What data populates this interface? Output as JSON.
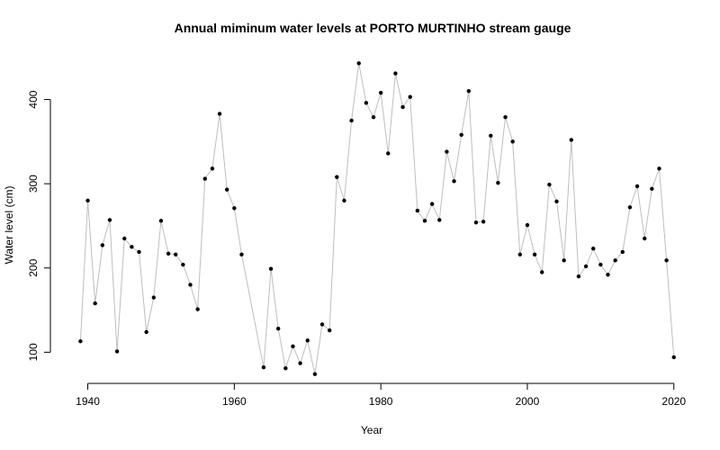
{
  "chart_data": {
    "type": "line",
    "title": "Annual miminum water levels at PORTO MURTINHO stream gauge",
    "xlabel": "Year",
    "ylabel": "Water level (cm)",
    "xlim": [
      1937.6,
      2020.4
    ],
    "ylim": [
      63,
      454
    ],
    "xticks": [
      1940,
      1960,
      1980,
      2000,
      2020
    ],
    "yticks": [
      100,
      200,
      300,
      400
    ],
    "grid": false,
    "markers": true,
    "line_color": "#bebebe",
    "marker_color": "#000000",
    "series": [
      {
        "x": [
          1939,
          1940,
          1941,
          1942,
          1943,
          1944,
          1945,
          1946,
          1947,
          1948,
          1949,
          1950,
          1951,
          1952,
          1953,
          1954,
          1955,
          1956,
          1957,
          1958,
          1959,
          1960,
          1961,
          1964,
          1965,
          1966,
          1967,
          1968,
          1969,
          1970,
          1971,
          1972,
          1973,
          1974,
          1975,
          1976,
          1977,
          1978,
          1979,
          1980,
          1981,
          1982,
          1983,
          1984,
          1985,
          1986,
          1987,
          1988,
          1989,
          1990,
          1991,
          1992,
          1993,
          1994,
          1995,
          1996,
          1997,
          1998,
          1999,
          2000,
          2001,
          2002,
          2003,
          2004,
          2005,
          2006,
          2007,
          2008,
          2009,
          2010,
          2011,
          2012,
          2013,
          2014,
          2015,
          2016,
          2017,
          2018,
          2019,
          2020
        ],
        "values": [
          113,
          280,
          158,
          227,
          257,
          101,
          235,
          225,
          219,
          124,
          165,
          256,
          217,
          216,
          204,
          180,
          151,
          306,
          318,
          383,
          293,
          271,
          216,
          82,
          199,
          128,
          81,
          107,
          87,
          114,
          74,
          133,
          126,
          308,
          280,
          375,
          443,
          396,
          379,
          408,
          336,
          431,
          391,
          403,
          268,
          256,
          276,
          257,
          338,
          303,
          358,
          410,
          254,
          255,
          357,
          301,
          379,
          350,
          216,
          251,
          216,
          195,
          299,
          279,
          209,
          352,
          190,
          202,
          223,
          204,
          192,
          209,
          219,
          272,
          297,
          235,
          294,
          318,
          209,
          94
        ]
      }
    ]
  }
}
